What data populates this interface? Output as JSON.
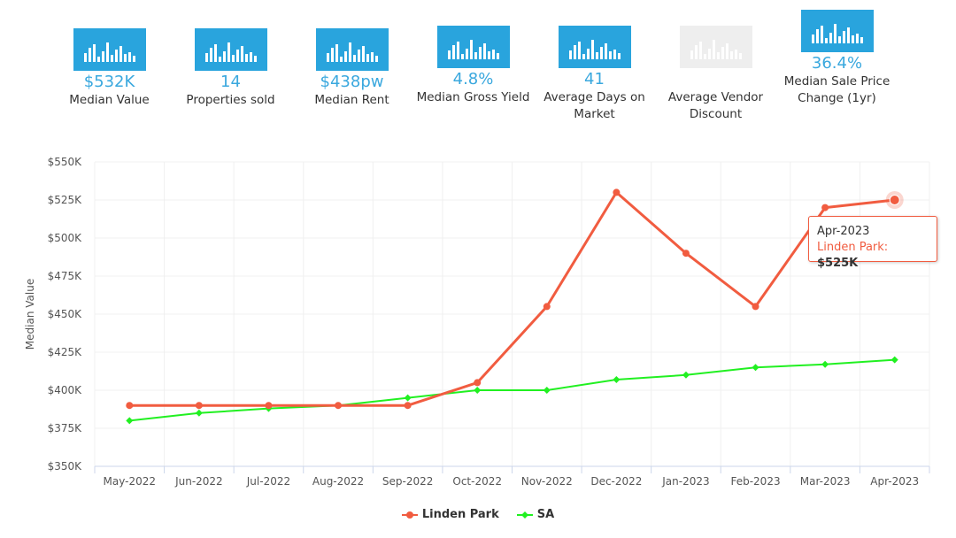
{
  "stats": [
    {
      "value": "$532K",
      "label": "Median Value",
      "disabled": false
    },
    {
      "value": "14",
      "label": "Properties sold",
      "disabled": false
    },
    {
      "value": "$438pw",
      "label": "Median Rent",
      "disabled": false
    },
    {
      "value": "4.8%",
      "label": "Median Gross Yield",
      "disabled": false
    },
    {
      "value": "41",
      "label": "Average Days on Market",
      "disabled": false
    },
    {
      "value": "",
      "label": "Average Vendor Discount",
      "disabled": true
    },
    {
      "value": "36.4%",
      "label": "Median Sale Price Change (1yr)",
      "disabled": false
    }
  ],
  "colors": {
    "accent": "#29a4dd",
    "linden": "#f15c40",
    "sa": "#21f021"
  },
  "tooltip": {
    "date": "Apr-2023",
    "series": "Linden Park:",
    "value": "$525K"
  },
  "chart_data": {
    "type": "line",
    "ylabel": "Median Value",
    "xlabel": "",
    "ylim": [
      350000,
      550000
    ],
    "yticks": [
      "$350K",
      "$375K",
      "$400K",
      "$425K",
      "$450K",
      "$475K",
      "$500K",
      "$525K",
      "$550K"
    ],
    "categories": [
      "May-2022",
      "Jun-2022",
      "Jul-2022",
      "Aug-2022",
      "Sep-2022",
      "Oct-2022",
      "Nov-2022",
      "Dec-2022",
      "Jan-2023",
      "Feb-2023",
      "Mar-2023",
      "Apr-2023"
    ],
    "series": [
      {
        "name": "Linden Park",
        "color": "#f15c40",
        "values": [
          390000,
          390000,
          390000,
          390000,
          390000,
          405000,
          455000,
          530000,
          490000,
          455000,
          520000,
          525000
        ]
      },
      {
        "name": "SA",
        "color": "#21f021",
        "values": [
          380000,
          385000,
          388000,
          390000,
          395000,
          400000,
          400000,
          407000,
          410000,
          415000,
          417000,
          420000
        ]
      }
    ],
    "legend_position": "bottom-center",
    "grid": true
  }
}
